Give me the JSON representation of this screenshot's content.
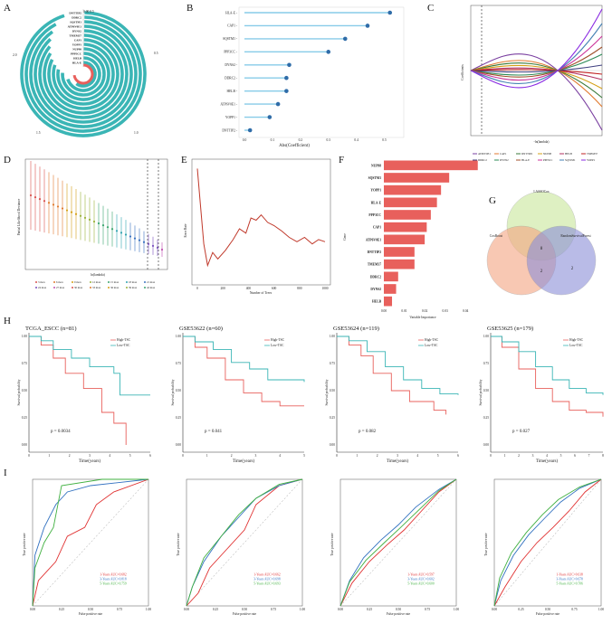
{
  "panels": {
    "A": {
      "letter": "A",
      "genes": [
        "DNTTIP2",
        "DDRC2",
        "SQSTM1",
        "ATP6V0E1",
        "DYNS2",
        "TMEM37",
        "CAP1",
        "YOPP1",
        "NUP98",
        "PPP3CC",
        "HELB",
        "HLA-E"
      ],
      "angle_labels": [
        "0.00 0.5",
        "0.5",
        "1.0",
        "1.5",
        "2.0"
      ],
      "ring_color": "#3ab5b5",
      "accent_color": "#e8605c"
    },
    "B": {
      "letter": "B",
      "xlabel": "Abs(Coefficient)",
      "ticks": [
        "0.0",
        "0.1",
        "0.2",
        "0.3",
        "0.4",
        "0.5"
      ],
      "chart_data": {
        "type": "lollipop",
        "categories": [
          "HLA-E",
          "CAP1",
          "SQSTM1",
          "PPP3CC",
          "DYNS2",
          "DDRC2",
          "HELB",
          "ATP6V0E1",
          "YOPP1",
          "DNTTIP2"
        ],
        "values": [
          0.52,
          0.44,
          0.36,
          0.3,
          0.16,
          0.15,
          0.15,
          0.12,
          0.09,
          0.02
        ],
        "xlim": [
          0,
          0.55
        ],
        "xlabel": "Abs(Coefficient)"
      }
    },
    "C": {
      "letter": "C",
      "ylabel": "Coefficients",
      "xlabel": "-ln(lambda)",
      "legend": [
        "ATP6V0E1",
        "CAP1",
        "DNTTIP2",
        "NUP98",
        "HELB",
        "TMEM37",
        "DDRC2",
        "DYNS2",
        "HLA-E",
        "PPP3CC",
        "SQSTM1",
        "YOPP1"
      ],
      "colors": [
        "#7a3fa0",
        "#e07a2f",
        "#3a7a3a",
        "#d4a017",
        "#b03060",
        "#c02020",
        "#404080",
        "#2e8b57",
        "#a0522d",
        "#cc3399",
        "#4682b4",
        "#8a2be2"
      ]
    },
    "D": {
      "letter": "D",
      "ylabel": "Partial Likelihood Deviance",
      "xlabel": "ln(lambda)",
      "legend": [
        "3 mon",
        "6 mon",
        "9 mon",
        "12 mon",
        "15 mon",
        "18 mon",
        "21 mon",
        "24 mon",
        "27 mon",
        "30 mon",
        "33 mon",
        "36 mon",
        "39 mon",
        "42 mon"
      ]
    },
    "E": {
      "letter": "E",
      "ylabel": "Error Rate",
      "xlabel": "Number of Trees",
      "xticks": [
        "0",
        "200",
        "400",
        "600",
        "800",
        "1000"
      ]
    },
    "F": {
      "letter": "F",
      "ylabel": "Gene",
      "xlabel": "Variable Importance",
      "xticks": [
        "0.00",
        "0.01",
        "0.02",
        "0.03",
        "0.04"
      ],
      "chart_data": {
        "type": "bar",
        "categories": [
          "NUP98",
          "SQSTM1",
          "YOPP1",
          "HLA-E",
          "PPP3CC",
          "CAP1",
          "ATP6V0E1",
          "DNTTIP2",
          "TMEM37",
          "DDRC2",
          "DYNS2",
          "HELB"
        ],
        "values": [
          0.046,
          0.032,
          0.028,
          0.026,
          0.023,
          0.021,
          0.02,
          0.015,
          0.015,
          0.007,
          0.006,
          0.004
        ],
        "xlim": [
          0,
          0.047
        ],
        "xlabel": "Variable Importance"
      }
    },
    "G": {
      "letter": "G",
      "sets": [
        "LASSOCox",
        "CoxBoost",
        "RandomSurvivalForest"
      ],
      "counts": [
        "8",
        "2",
        "2"
      ],
      "colors": [
        "#c9e79a",
        "#f4a582",
        "#8c8fd8"
      ]
    },
    "H": {
      "letter": "H",
      "ylabel": "Survival probability",
      "xlabel": "Time(years)",
      "legend_high": "High-TSC",
      "legend_low": "Low-TSC",
      "high_color": "#e8605c",
      "low_color": "#3ab5b5",
      "plots": [
        {
          "title": "TCGA_ESCC (n=81)",
          "p": "p = 0.0034",
          "xticks": [
            "0",
            "1",
            "2",
            "3",
            "4",
            "5",
            "6"
          ],
          "tmax": 6
        },
        {
          "title": "GSE53622 (n=60)",
          "p": "p = 0.041",
          "xticks": [
            "0",
            "1",
            "2",
            "3",
            "4",
            "5"
          ],
          "tmax": 5
        },
        {
          "title": "GSE53624 (n=119)",
          "p": "p = 0.082",
          "xticks": [
            "0",
            "1",
            "2",
            "3",
            "4",
            "5",
            "6"
          ],
          "tmax": 6
        },
        {
          "title": "GSE53625 (n=179)",
          "p": "p = 0.027",
          "xticks": [
            "0",
            "1",
            "2",
            "3",
            "4",
            "5",
            "6",
            "7",
            "8"
          ],
          "tmax": 8
        }
      ],
      "yticks": [
        "0.00",
        "0.25",
        "0.50",
        "0.75",
        "1.00"
      ]
    },
    "I": {
      "letter": "I",
      "ylabel": "True positive rate",
      "xlabel": "False positive rate",
      "xticks": [
        "0.00",
        "0.25",
        "0.50",
        "0.75",
        "1.00"
      ],
      "colors": [
        "#e03030",
        "#3070c0",
        "#40b040"
      ],
      "plots": [
        {
          "aucs": [
            "1-Years AUC=0.682",
            "3-Years AUC=0.818",
            "5-Years AUC=0.759"
          ]
        },
        {
          "aucs": [
            "1-Years AUC=0.662",
            "3-Years AUC=0.698",
            "5-Years AUC=0.693"
          ]
        },
        {
          "aucs": [
            "1-Years AUC=0.597",
            "3-Years AUC=0.602",
            "5-Years AUC=0.600"
          ]
        },
        {
          "aucs": [
            "1-Years AUC=0.618",
            "3-Years AUC=0.678",
            "5-Years AUC=0.706"
          ]
        }
      ]
    }
  }
}
